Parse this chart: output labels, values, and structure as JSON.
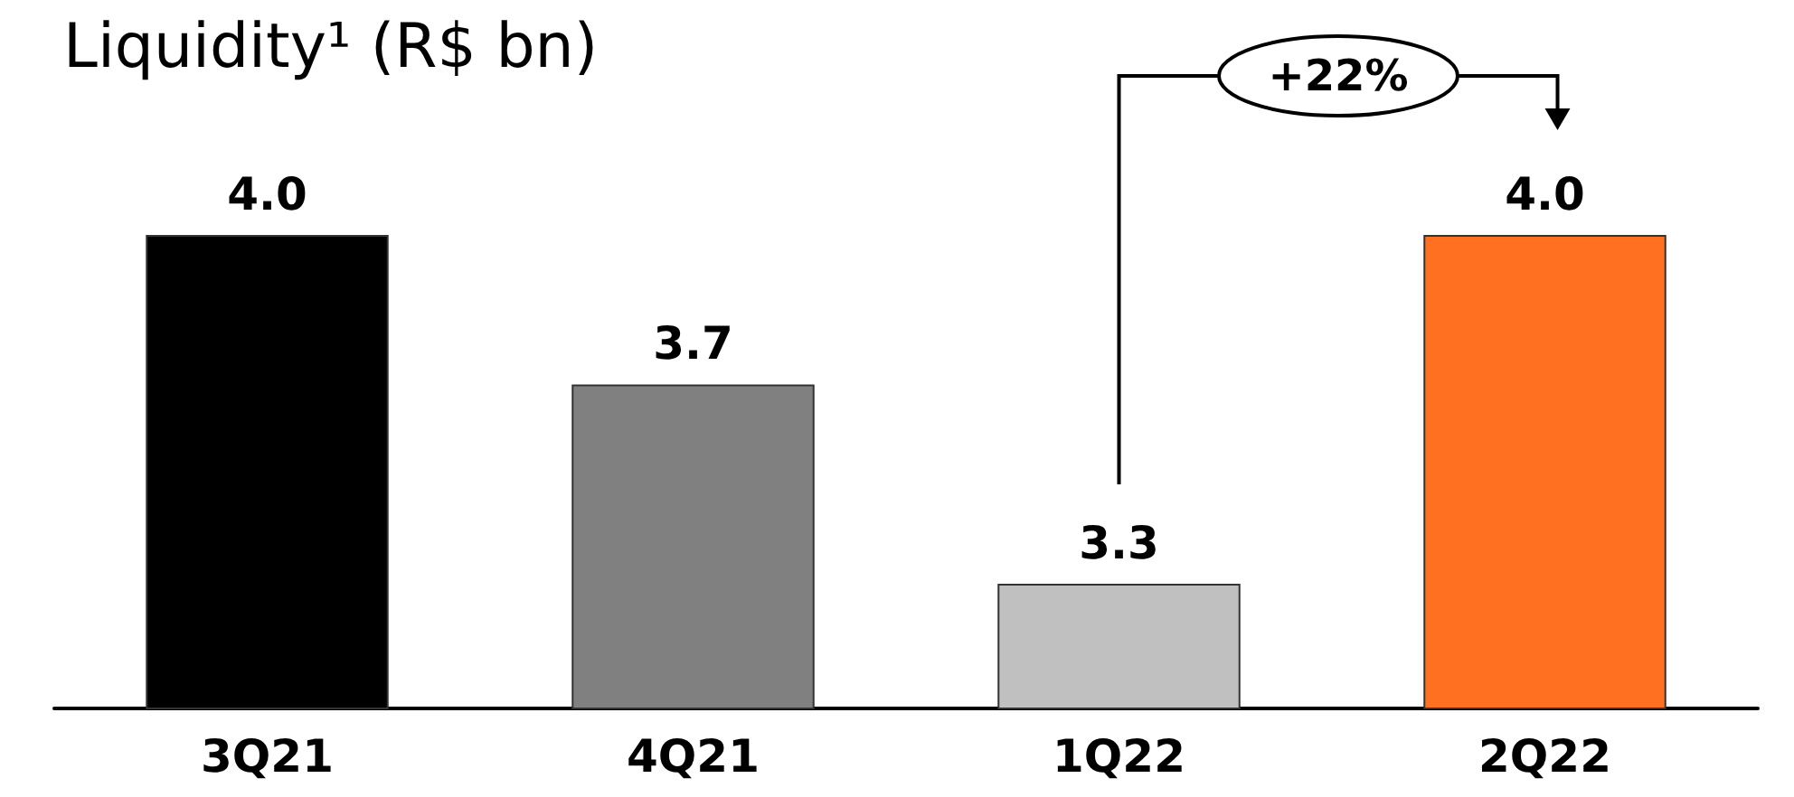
{
  "chart_data": {
    "type": "bar",
    "title": "Liquidity¹ (R$ bn)",
    "categories": [
      "3Q21",
      "4Q21",
      "1Q22",
      "2Q22"
    ],
    "values": [
      4.0,
      3.7,
      3.3,
      4.0
    ],
    "colors": [
      "#000000",
      "#808080",
      "#c0c0c0",
      "#ff7020"
    ],
    "value_labels": [
      "4.0",
      "3.7",
      "3.3",
      "4.0"
    ],
    "ylim": [
      3.05,
      4.0
    ],
    "tick_labels": "x",
    "annotations": [
      "+22%"
    ]
  }
}
